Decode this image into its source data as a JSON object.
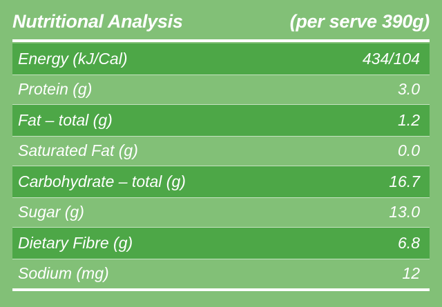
{
  "header": {
    "title": "Nutritional Analysis",
    "serving": "(per serve 390g)"
  },
  "rows": [
    {
      "label": "Energy (kJ/Cal)",
      "value": "434/104"
    },
    {
      "label": "Protein (g)",
      "value": "3.0"
    },
    {
      "label": "Fat – total (g)",
      "value": "1.2"
    },
    {
      "label": "Saturated Fat (g)",
      "value": "0.0"
    },
    {
      "label": "Carbohydrate – total (g)",
      "value": "16.7"
    },
    {
      "label": "Sugar (g)",
      "value": "13.0"
    },
    {
      "label": "Dietary Fibre (g)",
      "value": "6.8"
    },
    {
      "label": "Sodium (mg)",
      "value": "12"
    }
  ],
  "colors": {
    "background": "#82c077",
    "row_band": "#4da747",
    "text": "#ffffff"
  }
}
